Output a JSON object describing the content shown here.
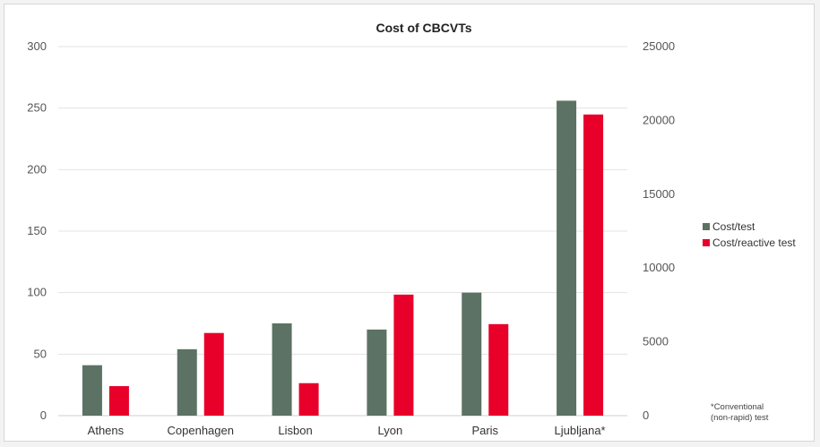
{
  "chart_data": {
    "type": "bar",
    "title": "Cost of CBCVTs",
    "categories": [
      "Athens",
      "Copenhagen",
      "Lisbon",
      "Lyon",
      "Paris",
      "Ljubljana*"
    ],
    "series": [
      {
        "name": "Cost/test",
        "axis": "left",
        "color": "#5c7264",
        "values": [
          41,
          54,
          75,
          70,
          100,
          256
        ]
      },
      {
        "name": "Cost/reactive test",
        "axis": "right",
        "color": "#e8002a",
        "values": [
          2000,
          5600,
          2200,
          8200,
          6200,
          20400
        ]
      }
    ],
    "ylim": [
      0,
      300
    ],
    "yticks": [
      "0",
      "50",
      "100",
      "150",
      "200",
      "250",
      "300"
    ],
    "y2lim": [
      0,
      25000
    ],
    "y2ticks": [
      "0",
      "5000",
      "10000",
      "15000",
      "20000",
      "25000"
    ],
    "grid": true,
    "legend_position": "right",
    "note_lines": [
      "*Conventional",
      "(non-rapid) test"
    ]
  }
}
